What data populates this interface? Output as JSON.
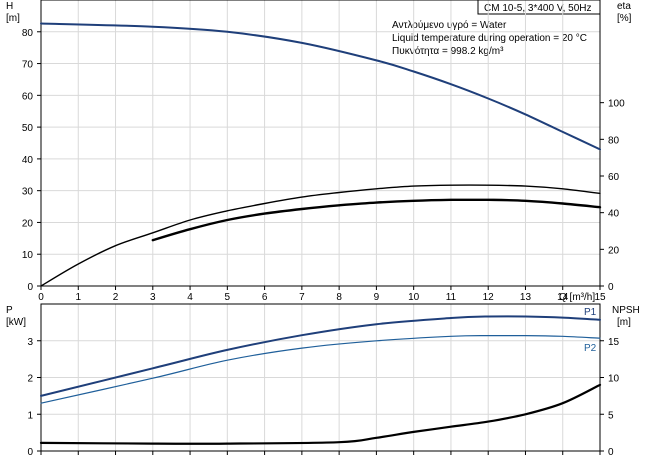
{
  "header": {
    "title": "CM 10-5, 3*400 V, 50Hz"
  },
  "notes": {
    "liquid": "Αντλούμενο υγρό = Water",
    "temperature": "Liquid temperature during operation = 20 °C",
    "density": "Πυκνότητα = 998.2 kg/m³"
  },
  "chart_data": [
    {
      "type": "line",
      "panel": "top",
      "xlabel": "Q [m³/h]",
      "x_ticks": [
        "0",
        "1",
        "2",
        "3",
        "4",
        "5",
        "6",
        "7",
        "8",
        "9",
        "10",
        "11",
        "12",
        "13",
        "14",
        "15"
      ],
      "xlim": [
        0,
        15
      ],
      "y_left": {
        "label_top": "H",
        "label_unit": "[m]",
        "ticks": [
          "0",
          "10",
          "20",
          "30",
          "40",
          "50",
          "60",
          "70",
          "80"
        ],
        "lim": [
          0,
          90
        ]
      },
      "y_right": {
        "label_top": "eta",
        "label_unit": "[%]",
        "ticks": [
          "0",
          "20",
          "40",
          "60",
          "80",
          "100"
        ],
        "lim": [
          0,
          156
        ]
      },
      "grid": true,
      "series": [
        {
          "axis": "left",
          "width": 2,
          "color": "#1f3f7a",
          "points": [
            [
              0,
              82.6
            ],
            [
              3,
              81.6
            ],
            [
              5,
              80.0
            ],
            [
              7,
              76.5
            ],
            [
              9,
              71.0
            ],
            [
              10,
              67.5
            ],
            [
              11,
              63.5
            ],
            [
              12,
              59.0
            ],
            [
              13,
              54.0
            ],
            [
              14,
              48.5
            ],
            [
              15,
              43.0
            ]
          ]
        },
        {
          "axis": "right",
          "width": 1.4,
          "color": "#000000",
          "points": [
            [
              0,
              0
            ],
            [
              1,
              12
            ],
            [
              2,
              22
            ],
            [
              3,
              29
            ],
            [
              4,
              36
            ],
            [
              5,
              41
            ],
            [
              6,
              45
            ],
            [
              7,
              48.5
            ],
            [
              8,
              51
            ],
            [
              9,
              53
            ],
            [
              10,
              54.5
            ],
            [
              11,
              55
            ],
            [
              12,
              55
            ],
            [
              13,
              54.5
            ],
            [
              14,
              53
            ],
            [
              15,
              50.5
            ]
          ]
        },
        {
          "axis": "right",
          "width": 2.4,
          "color": "#000000",
          "points": [
            [
              3,
              25
            ],
            [
              4,
              31
            ],
            [
              5,
              36
            ],
            [
              6,
              39.5
            ],
            [
              7,
              42
            ],
            [
              8,
              44
            ],
            [
              9,
              45.5
            ],
            [
              10,
              46.5
            ],
            [
              11,
              47
            ],
            [
              12,
              47
            ],
            [
              13,
              46.5
            ],
            [
              14,
              45
            ],
            [
              15,
              43
            ]
          ]
        }
      ]
    },
    {
      "type": "line",
      "panel": "bottom",
      "xlim": [
        0,
        15
      ],
      "y_left": {
        "label_top": "P",
        "label_unit": "[kW]",
        "ticks": [
          "0",
          "1",
          "2",
          "3"
        ],
        "lim": [
          0,
          4
        ]
      },
      "y_right": {
        "label_top": "NPSH",
        "label_unit": "[m]",
        "ticks": [
          "0",
          "5",
          "10",
          "15"
        ],
        "lim": [
          0,
          20
        ]
      },
      "grid": true,
      "series": [
        {
          "name": "P1",
          "axis": "left",
          "width": 2,
          "color": "#1f3f7a",
          "points": [
            [
              0,
              1.5
            ],
            [
              3,
              2.25
            ],
            [
              5,
              2.75
            ],
            [
              7,
              3.15
            ],
            [
              9,
              3.45
            ],
            [
              11,
              3.62
            ],
            [
              12,
              3.66
            ],
            [
              13,
              3.66
            ],
            [
              14,
              3.63
            ],
            [
              15,
              3.57
            ]
          ]
        },
        {
          "name": "P2",
          "axis": "left",
          "width": 1.2,
          "color": "#1f5f9a",
          "points": [
            [
              0,
              1.3
            ],
            [
              3,
              1.98
            ],
            [
              5,
              2.47
            ],
            [
              7,
              2.8
            ],
            [
              9,
              3.0
            ],
            [
              11,
              3.12
            ],
            [
              12,
              3.14
            ],
            [
              13,
              3.14
            ],
            [
              14,
              3.12
            ],
            [
              15,
              3.07
            ]
          ]
        },
        {
          "axis": "right",
          "width": 2.2,
          "color": "#000000",
          "points": [
            [
              0,
              1.1
            ],
            [
              3,
              1.0
            ],
            [
              5,
              1.0
            ],
            [
              8,
              1.2
            ],
            [
              9,
              1.8
            ],
            [
              10,
              2.6
            ],
            [
              11,
              3.3
            ],
            [
              12,
              4.0
            ],
            [
              13,
              5.0
            ],
            [
              14,
              6.5
            ],
            [
              15,
              9.0
            ]
          ]
        }
      ]
    }
  ]
}
